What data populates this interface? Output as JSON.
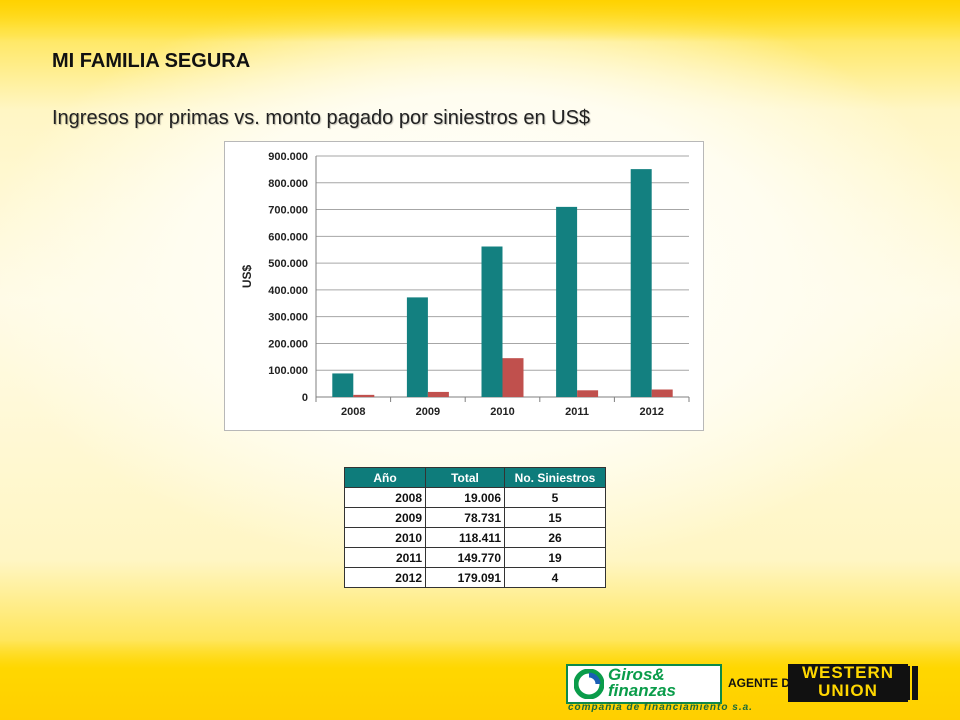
{
  "slide": {
    "heading": "MI FAMILIA SEGURA",
    "subheading": "Ingresos por primas vs. monto pagado por siniestros en US$"
  },
  "chart_data": {
    "type": "bar",
    "categories": [
      "2008",
      "2009",
      "2010",
      "2011",
      "2012"
    ],
    "series": [
      {
        "values": [
          88000,
          372000,
          562000,
          710000,
          851000
        ],
        "color": "#138080"
      },
      {
        "values": [
          8000,
          19000,
          145000,
          25000,
          28000
        ],
        "color": "#c0504d"
      }
    ],
    "ylabel": "US$",
    "ylim": [
      0,
      900000
    ],
    "yticks": [
      "0",
      "100.000",
      "200.000",
      "300.000",
      "400.000",
      "500.000",
      "600.000",
      "700.000",
      "800.000",
      "900.000"
    ],
    "grid": true
  },
  "table": {
    "headers": [
      "Año",
      "Total",
      "No. Siniestros"
    ],
    "rows": [
      [
        "2008",
        "19.006",
        "5"
      ],
      [
        "2009",
        "78.731",
        "15"
      ],
      [
        "2010",
        "118.411",
        "26"
      ],
      [
        "2011",
        "149.770",
        "19"
      ],
      [
        "2012",
        "179.091",
        "4"
      ]
    ],
    "header_color": "#0e7c7b"
  },
  "footer": {
    "brand_line1": "Giros&",
    "brand_line2": "finanzas",
    "tagline": "compañía de financiamiento s.a.",
    "agent_label": "AGENTE DE",
    "wu_line1": "WESTERN",
    "wu_line2": "UNION"
  }
}
